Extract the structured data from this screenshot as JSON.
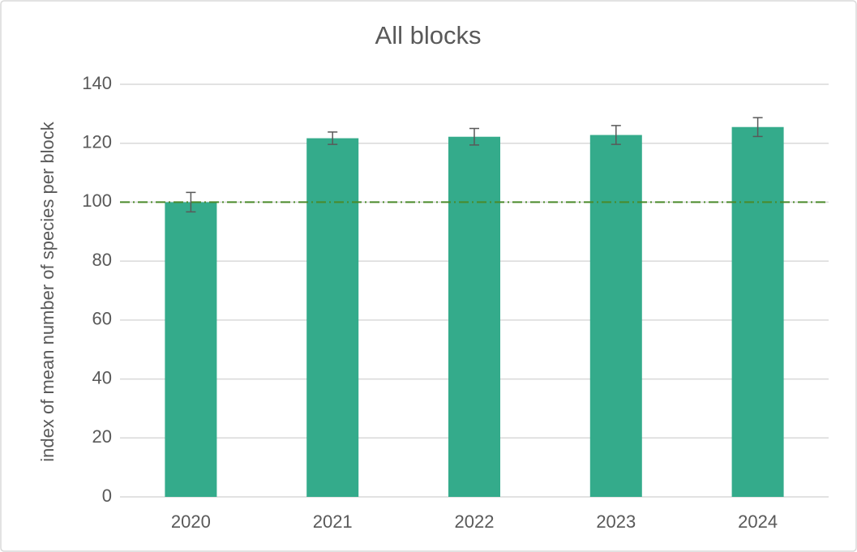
{
  "chart_data": {
    "type": "bar",
    "title": "All blocks",
    "y_label": "index of mean number of species per block",
    "categories": [
      "2020",
      "2021",
      "2022",
      "2023",
      "2024"
    ],
    "values": [
      100,
      121.7,
      122.2,
      122.8,
      125.5
    ],
    "errors": [
      3.3,
      2.1,
      2.8,
      3.2,
      3.2
    ],
    "color": "#34ab8b",
    "reference_line": {
      "value": 100,
      "color": "#4a8a2a"
    },
    "ylim": [
      0,
      140
    ],
    "yticks": [
      0,
      20,
      40,
      60,
      80,
      100,
      120,
      140
    ],
    "grid": true
  }
}
